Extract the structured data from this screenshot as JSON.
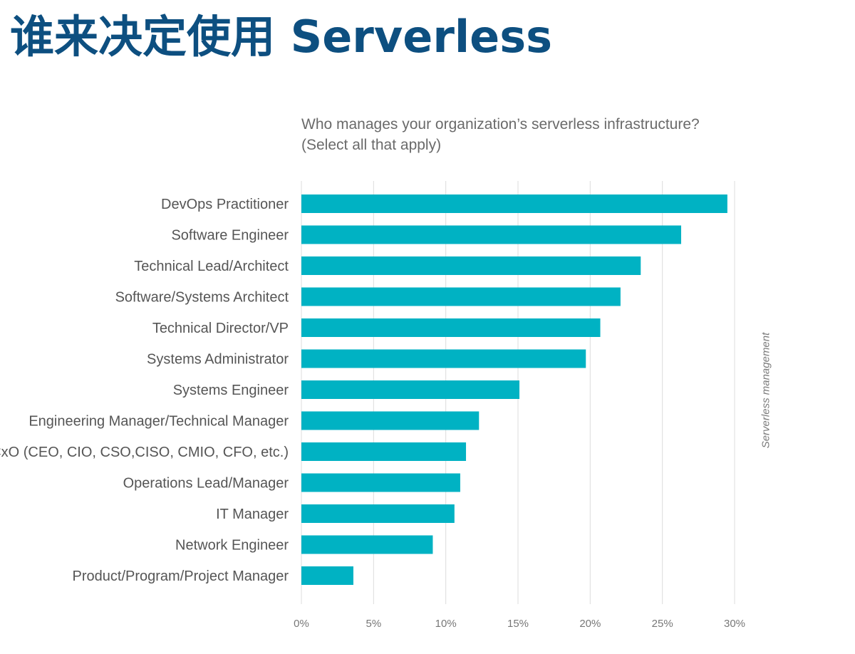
{
  "slide": {
    "title": "谁来决定使用 Serverless"
  },
  "chart_data": {
    "type": "bar",
    "orientation": "horizontal",
    "title": "Who manages your organization’s serverless infrastructure?",
    "subtitle": "(Select all that apply)",
    "side_label": "Serverless management",
    "categories": [
      "DevOps Practitioner",
      "Software Engineer",
      "Technical Lead/Architect",
      "Software/Systems Architect",
      "Technical Director/VP",
      "Systems Administrator",
      "Systems Engineer",
      "Engineering Manager/Technical Manager",
      "CxO (CEO, CIO, CSO,CISO, CMIO, CFO, etc.)",
      "Operations Lead/Manager",
      "IT Manager",
      "Network Engineer",
      "Product/Program/Project Manager"
    ],
    "values": [
      29.5,
      26.3,
      23.5,
      22.1,
      20.7,
      19.7,
      15.1,
      12.3,
      11.4,
      11.0,
      10.6,
      9.1,
      3.6
    ],
    "xlim": [
      0,
      30
    ],
    "x_ticks": [
      0,
      5,
      10,
      15,
      20,
      25,
      30
    ],
    "x_tick_labels": [
      "0%",
      "5%",
      "10%",
      "15%",
      "20%",
      "25%",
      "30%"
    ],
    "grid": true,
    "bar_color": "#00b2c3"
  }
}
